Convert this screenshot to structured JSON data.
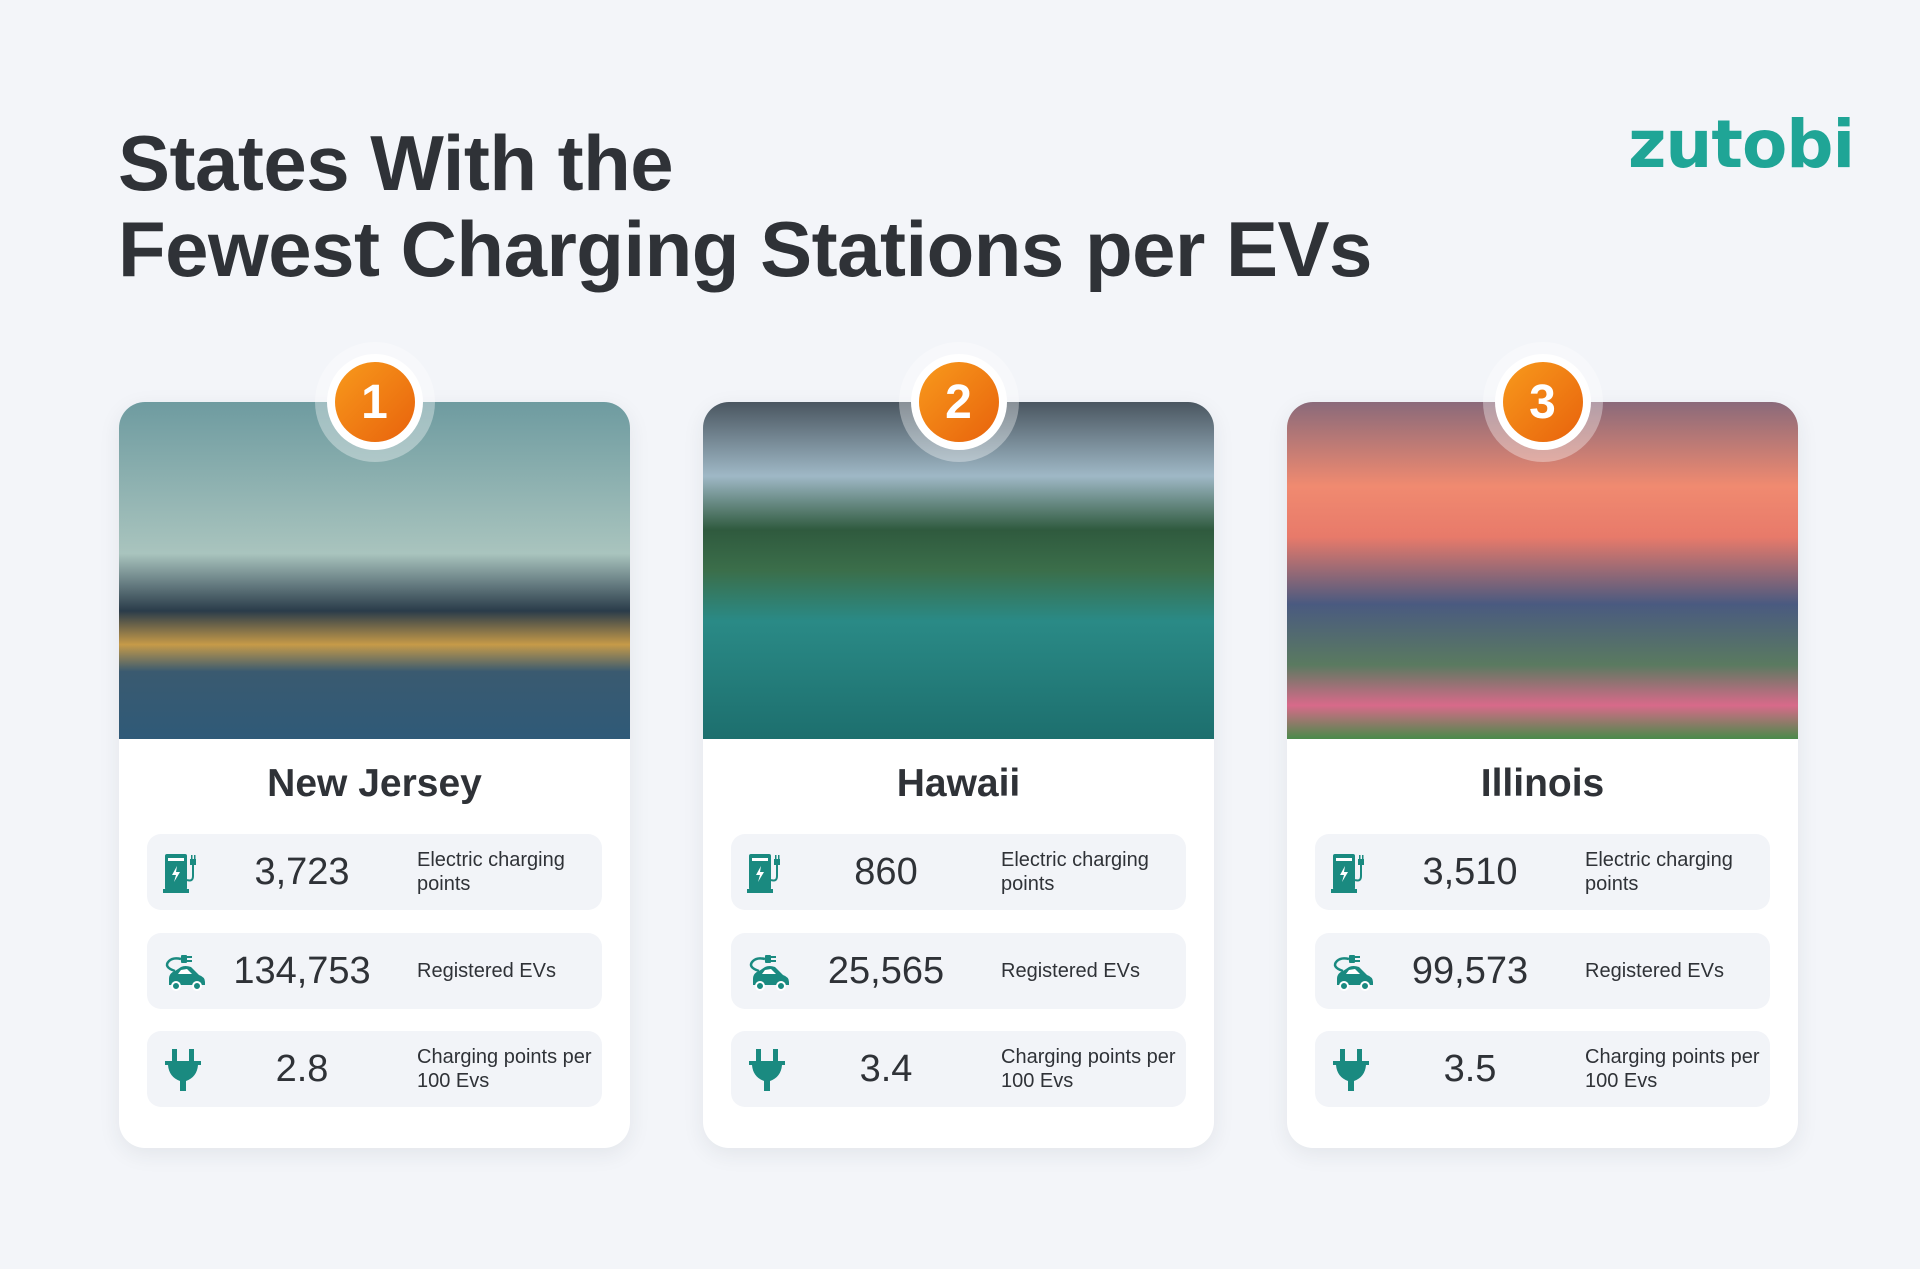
{
  "header": {
    "title_line1": "States With the",
    "title_line2": "Fewest Charging Stations per EVs",
    "logo": "zutobi"
  },
  "colors": {
    "accent": "#1a8a80",
    "logo": "#1fa596",
    "badge": "#f07c14"
  },
  "labels": {
    "charging_points": "Electric charging points",
    "registered_evs": "Registered EVs",
    "per_100": "Charging points per 100 Evs"
  },
  "icons": [
    "charging-station-icon",
    "electric-car-icon",
    "plug-icon"
  ],
  "cards": [
    {
      "rank": "1",
      "state": "New Jersey",
      "charging_points": "3,723",
      "registered_evs": "134,753",
      "per_100": "2.8"
    },
    {
      "rank": "2",
      "state": "Hawaii",
      "charging_points": "860",
      "registered_evs": "25,565",
      "per_100": "3.4"
    },
    {
      "rank": "3",
      "state": "Illinois",
      "charging_points": "3,510",
      "registered_evs": "99,573",
      "per_100": "3.5"
    }
  ]
}
